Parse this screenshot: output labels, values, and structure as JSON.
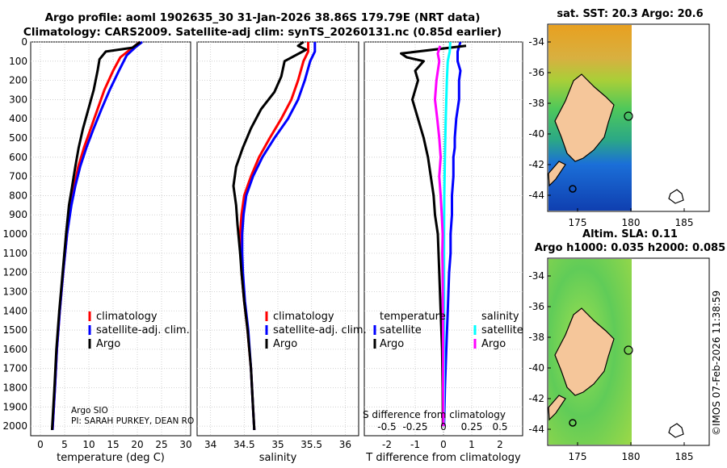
{
  "titles": {
    "line1": "Argo profile: aoml 1902635_30 31-Jan-2026 38.86S 179.79E (NRT data)",
    "line2": "Climatology: CARS2009. Satellite-adj clim: synTS_20260131.nc (0.85d earlier)"
  },
  "colors": {
    "clim": "#ff0000",
    "satclim": "#0000ff",
    "argo": "#000000",
    "satsal": "#00ffff",
    "argosal": "#ff00ff"
  },
  "depth_ticks": [
    "0",
    "100",
    "200",
    "300",
    "400",
    "500",
    "600",
    "700",
    "800",
    "900",
    "1000",
    "1100",
    "1200",
    "1300",
    "1400",
    "1500",
    "1600",
    "1700",
    "1800",
    "1900",
    "2000"
  ],
  "watermark": "©IMOS 07-Feb-2026 11:38:59",
  "chart_data": [
    {
      "type": "line",
      "name": "temperature",
      "xlabel": "temperature (deg C)",
      "ylabel": "depth",
      "xlim": [
        -2,
        31
      ],
      "ylim": [
        0,
        2050
      ],
      "xticks": [
        "0",
        "5",
        "10",
        "15",
        "20",
        "25",
        "30"
      ],
      "legend": [
        "climatology",
        "satellite-adj. clim.",
        "Argo"
      ],
      "source_note": "Argo SIO",
      "pi_note": "PI: SARAH PURKEY, DEAN RO",
      "series": [
        {
          "name": "climatology",
          "points": [
            [
              20.5,
              0
            ],
            [
              18.5,
              40
            ],
            [
              16.5,
              80
            ],
            [
              15.0,
              150
            ],
            [
              13.2,
              250
            ],
            [
              11.8,
              350
            ],
            [
              10.4,
              450
            ],
            [
              9.0,
              550
            ],
            [
              7.8,
              650
            ],
            [
              7.0,
              750
            ],
            [
              6.3,
              850
            ],
            [
              5.5,
              1000
            ],
            [
              4.7,
              1200
            ],
            [
              4.0,
              1400
            ],
            [
              3.4,
              1600
            ],
            [
              3.0,
              1800
            ],
            [
              2.5,
              2020
            ]
          ]
        },
        {
          "name": "satellite-adj. clim.",
          "points": [
            [
              21.0,
              0
            ],
            [
              19.5,
              30
            ],
            [
              17.8,
              70
            ],
            [
              16.2,
              150
            ],
            [
              14.3,
              250
            ],
            [
              12.6,
              350
            ],
            [
              11.0,
              450
            ],
            [
              9.5,
              550
            ],
            [
              8.2,
              650
            ],
            [
              7.2,
              750
            ],
            [
              6.4,
              850
            ],
            [
              5.5,
              1000
            ],
            [
              4.7,
              1200
            ],
            [
              4.0,
              1400
            ],
            [
              3.4,
              1600
            ],
            [
              3.0,
              1800
            ],
            [
              2.5,
              2020
            ]
          ]
        },
        {
          "name": "Argo",
          "points": [
            [
              20.6,
              0
            ],
            [
              19.0,
              30
            ],
            [
              13.5,
              50
            ],
            [
              12.2,
              90
            ],
            [
              11.8,
              150
            ],
            [
              11.0,
              250
            ],
            [
              9.9,
              350
            ],
            [
              8.8,
              450
            ],
            [
              7.9,
              550
            ],
            [
              7.2,
              650
            ],
            [
              6.5,
              760
            ],
            [
              5.9,
              850
            ],
            [
              5.3,
              1000
            ],
            [
              4.6,
              1200
            ],
            [
              3.9,
              1400
            ],
            [
              3.3,
              1600
            ],
            [
              2.9,
              1800
            ],
            [
              2.4,
              2020
            ]
          ]
        }
      ]
    },
    {
      "type": "line",
      "name": "salinity",
      "xlabel": "salinity",
      "ylabel": "depth",
      "xlim": [
        33.8,
        36.2
      ],
      "ylim": [
        0,
        2050
      ],
      "xticks": [
        "34",
        "34.5",
        "35",
        "35.5",
        "36"
      ],
      "legend": [
        "climatology",
        "satellite-adj. clim.",
        "Argo"
      ],
      "series": [
        {
          "name": "climatology",
          "points": [
            [
              35.45,
              0
            ],
            [
              35.45,
              50
            ],
            [
              35.38,
              100
            ],
            [
              35.3,
              200
            ],
            [
              35.2,
              300
            ],
            [
              35.05,
              400
            ],
            [
              34.88,
              500
            ],
            [
              34.72,
              600
            ],
            [
              34.6,
              700
            ],
            [
              34.5,
              800
            ],
            [
              34.46,
              900
            ],
            [
              34.44,
              1000
            ],
            [
              34.45,
              1100
            ],
            [
              34.46,
              1200
            ],
            [
              34.5,
              1350
            ],
            [
              34.55,
              1500
            ],
            [
              34.6,
              1700
            ],
            [
              34.63,
              1900
            ],
            [
              34.65,
              2020
            ]
          ]
        },
        {
          "name": "satellite-adj. clim.",
          "points": [
            [
              35.55,
              0
            ],
            [
              35.55,
              50
            ],
            [
              35.48,
              100
            ],
            [
              35.4,
              200
            ],
            [
              35.3,
              300
            ],
            [
              35.15,
              400
            ],
            [
              34.95,
              500
            ],
            [
              34.77,
              600
            ],
            [
              34.63,
              700
            ],
            [
              34.53,
              800
            ],
            [
              34.49,
              900
            ],
            [
              34.47,
              1000
            ],
            [
              34.47,
              1100
            ],
            [
              34.48,
              1200
            ],
            [
              34.51,
              1350
            ],
            [
              34.56,
              1500
            ],
            [
              34.6,
              1700
            ],
            [
              34.63,
              1900
            ],
            [
              34.65,
              2020
            ]
          ]
        },
        {
          "name": "Argo",
          "points": [
            [
              35.38,
              0
            ],
            [
              35.3,
              20
            ],
            [
              35.42,
              40
            ],
            [
              35.1,
              100
            ],
            [
              35.05,
              180
            ],
            [
              34.95,
              260
            ],
            [
              34.75,
              350
            ],
            [
              34.6,
              450
            ],
            [
              34.48,
              550
            ],
            [
              34.38,
              650
            ],
            [
              34.34,
              750
            ],
            [
              34.38,
              850
            ],
            [
              34.4,
              950
            ],
            [
              34.44,
              1100
            ],
            [
              34.46,
              1200
            ],
            [
              34.5,
              1350
            ],
            [
              34.55,
              1500
            ],
            [
              34.6,
              1700
            ],
            [
              34.63,
              1900
            ],
            [
              34.65,
              2020
            ]
          ]
        }
      ]
    },
    {
      "type": "line",
      "name": "difference from climatology",
      "xlabel": "T difference from climatology",
      "ylabel": "depth",
      "xlim": [
        -2.8,
        2.8
      ],
      "ylim": [
        0,
        2050
      ],
      "xticks": [
        "-2",
        "-1",
        "0",
        "1",
        "2"
      ],
      "top_label": "S difference from climatology",
      "top_ticks": [
        "-0.5",
        "-0.25",
        "0",
        "0.25",
        "0.5"
      ],
      "legend_left_title": "temperature",
      "legend_right_title": "salinity",
      "legend": [
        "satellite",
        "Argo",
        "satellite",
        "Argo"
      ],
      "series": [
        {
          "name": "temperature satellite",
          "points": [
            [
              0.6,
              0
            ],
            [
              0.5,
              50
            ],
            [
              0.5,
              100
            ],
            [
              0.6,
              150
            ],
            [
              0.55,
              200
            ],
            [
              0.55,
              300
            ],
            [
              0.45,
              400
            ],
            [
              0.4,
              500
            ],
            [
              0.4,
              550
            ],
            [
              0.35,
              600
            ],
            [
              0.35,
              700
            ],
            [
              0.3,
              800
            ],
            [
              0.3,
              900
            ],
            [
              0.25,
              1000
            ],
            [
              0.25,
              1100
            ],
            [
              0.2,
              1200
            ],
            [
              0.15,
              1400
            ],
            [
              0.1,
              1600
            ],
            [
              0.05,
              1800
            ],
            [
              0.02,
              2000
            ]
          ]
        },
        {
          "name": "temperature Argo",
          "points": [
            [
              0.8,
              20
            ],
            [
              -1.5,
              60
            ],
            [
              -1.3,
              80
            ],
            [
              -0.7,
              100
            ],
            [
              -1.0,
              150
            ],
            [
              -0.9,
              200
            ],
            [
              -1.1,
              300
            ],
            [
              -0.9,
              400
            ],
            [
              -0.7,
              500
            ],
            [
              -0.55,
              600
            ],
            [
              -0.45,
              700
            ],
            [
              -0.35,
              800
            ],
            [
              -0.3,
              900
            ],
            [
              -0.2,
              1000
            ],
            [
              -0.15,
              1200
            ],
            [
              -0.1,
              1400
            ],
            [
              -0.05,
              1600
            ],
            [
              -0.03,
              1800
            ],
            [
              -0.02,
              2000
            ]
          ]
        },
        {
          "name": "salinity satellite",
          "points": [
            [
              0.24,
              0
            ],
            [
              0.22,
              50
            ],
            [
              0.15,
              100
            ],
            [
              0.12,
              200
            ],
            [
              0.1,
              300
            ],
            [
              0.08,
              400
            ],
            [
              0.05,
              600
            ],
            [
              0.03,
              800
            ],
            [
              0.02,
              1000
            ],
            [
              0.02,
              1500
            ],
            [
              0.01,
              2000
            ]
          ]
        },
        {
          "name": "salinity Argo",
          "points": [
            [
              -0.12,
              20
            ],
            [
              -0.2,
              60
            ],
            [
              -0.15,
              100
            ],
            [
              -0.25,
              200
            ],
            [
              -0.3,
              300
            ],
            [
              -0.22,
              400
            ],
            [
              -0.15,
              500
            ],
            [
              -0.1,
              600
            ],
            [
              -0.15,
              700
            ],
            [
              -0.1,
              800
            ],
            [
              -0.06,
              900
            ],
            [
              -0.03,
              1000
            ],
            [
              -0.04,
              1100
            ],
            [
              -0.03,
              1200
            ],
            [
              -0.02,
              1400
            ],
            [
              -0.01,
              1600
            ],
            [
              -0.01,
              1800
            ],
            [
              0.0,
              2000
            ]
          ]
        }
      ]
    }
  ],
  "maps": [
    {
      "title": "sat. SST: 20.3 Argo: 20.6",
      "yticks": [
        "-34",
        "-36",
        "-38",
        "-40",
        "-42",
        "-44"
      ],
      "xticks": [
        "175",
        "180",
        "185"
      ]
    },
    {
      "title1": "Altim. SLA: 0.11",
      "title2": "Argo h1000: 0.035 h2000: 0.085",
      "yticks": [
        "-34",
        "-36",
        "-38",
        "-40",
        "-42",
        "-44"
      ],
      "xticks": [
        "175",
        "180",
        "185"
      ]
    }
  ]
}
